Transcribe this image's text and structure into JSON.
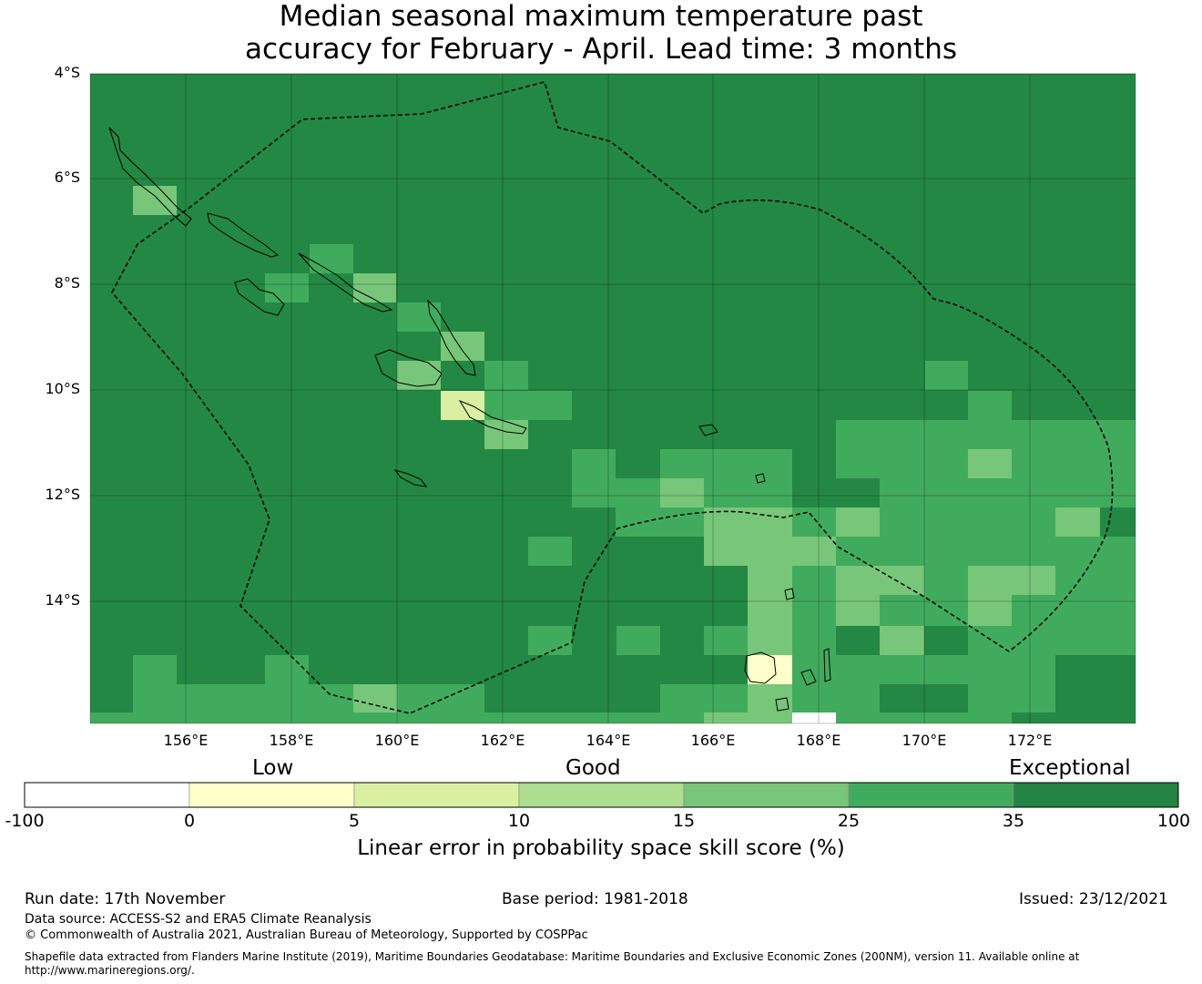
{
  "title": {
    "line1": "Median seasonal maximum temperature past",
    "line2": "accuracy for February - April. Lead time: 3 months"
  },
  "map": {
    "background_color": "#238843",
    "lat_labels": [
      "4°S",
      "6°S",
      "8°S",
      "10°S",
      "12°S",
      "14°S"
    ],
    "lon_labels": [
      "156°E",
      "158°E",
      "160°E",
      "162°E",
      "164°E",
      "166°E",
      "168°E",
      "170°E",
      "172°E"
    ]
  },
  "colorbar": {
    "categories": [
      "Low",
      "Good",
      "Exceptional"
    ],
    "tick_labels": [
      "-100",
      "0",
      "5",
      "10",
      "15",
      "25",
      "35",
      "100"
    ],
    "colors": [
      "#ffffff",
      "#ffffcc",
      "#d9f0a3",
      "#addd8e",
      "#78c679",
      "#41ab5d",
      "#238443"
    ],
    "title": "Linear error in probability space skill score (%)"
  },
  "footer": {
    "run_date": "Run date: 17th November",
    "base_period": "Base period: 1981-2018",
    "issued": "Issued: 23/12/2021",
    "data_source": "Data source: ACCESS-S2 and ERA5 Climate Reanalysis",
    "copyright": "© Commonwealth of Australia 2021, Australian Bureau of Meteorology, Supported by COSPPac",
    "shapefile_line1": "Shapefile data extracted from Flanders Marine Institute (2019), Maritime Boundaries Geodatabase: Maritime Boundaries and Exclusive Economic Zones (200NM), version 11. Available online at",
    "shapefile_line2": "http://www.marineregions.org/."
  }
}
